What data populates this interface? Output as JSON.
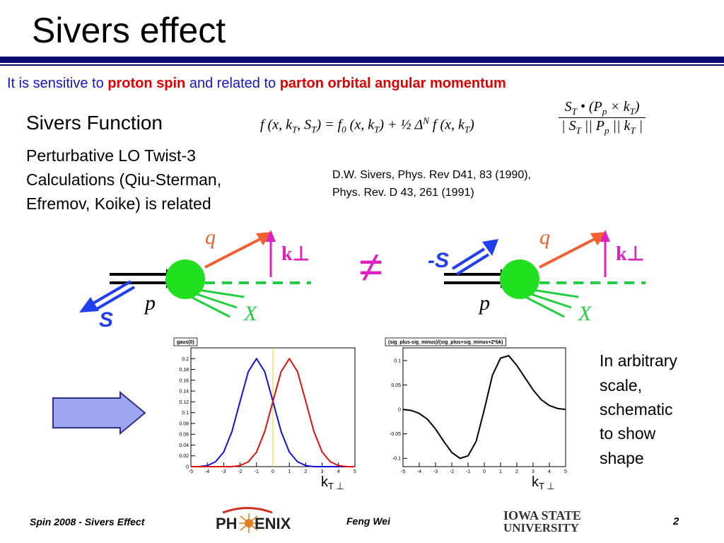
{
  "header": {
    "title": "Sivers effect"
  },
  "subtitle": [
    "It is sensitive to ",
    "proton spin",
    " and related to ",
    "parton orbital angular momentum"
  ],
  "section": {
    "heading": "Sivers Function",
    "lines": [
      "Perturbative LO Twist-3",
      "Calculations (Qiu-Sterman,",
      "Efremov, Koike) is related"
    ]
  },
  "formula": {
    "left": [
      "f (x, k",
      {
        "sub": "T"
      },
      ", S",
      {
        "sub": "T"
      },
      ") = f",
      {
        "sub": "0"
      },
      " (x, k",
      {
        "sub": "T"
      },
      ") + ½ Δ",
      {
        "sup": "N"
      },
      " f (x, k",
      {
        "sub": "T"
      },
      ")"
    ],
    "numerator": [
      "S",
      {
        "sub": "T"
      },
      " • (P",
      {
        "sub": "p"
      },
      " × k",
      {
        "sub": "T"
      },
      ")"
    ],
    "denominator": [
      "| S",
      {
        "sub": "T"
      },
      " || P",
      {
        "sub": "p"
      },
      " || k",
      {
        "sub": "T"
      },
      " |"
    ]
  },
  "references": [
    "D.W. Sivers, Phys. Rev D41, 83 (1990),",
    "Phys. Rev. D 43, 261 (1991)"
  ],
  "diagram": {
    "q": "q",
    "k": "k⊥",
    "p": "p",
    "S": "S",
    "X": "X",
    "minus_S": "-S",
    "not_equal": "≠"
  },
  "plots": [
    {
      "title": "gaus(0)",
      "xlim": [
        -5,
        5
      ],
      "ylim": [
        0,
        0.22
      ],
      "xticks": [
        -5,
        -4,
        -3,
        -2,
        -1,
        0,
        1,
        2,
        3,
        4,
        5
      ],
      "yticks": [
        0,
        0.02,
        0.04,
        0.06,
        0.08,
        0.1,
        0.12,
        0.14,
        0.16,
        0.18,
        0.2
      ],
      "marker_x": 0,
      "x": [
        -5,
        -4.5,
        -4,
        -3.5,
        -3,
        -2.5,
        -2,
        -1.5,
        -1,
        -0.5,
        0,
        0.5,
        1,
        1.5,
        2,
        2.5,
        3,
        3.5,
        4,
        4.5,
        5
      ],
      "series": [
        {
          "color": "#1010e0",
          "values": [
            0,
            0,
            0.002,
            0.009,
            0.027,
            0.065,
            0.121,
            0.176,
            0.2,
            0.176,
            0.121,
            0.065,
            0.027,
            0.009,
            0.002,
            0,
            0,
            0,
            0,
            0,
            0
          ]
        },
        {
          "color": "#e01010",
          "values": [
            0,
            0,
            0,
            0,
            0,
            0,
            0.002,
            0.009,
            0.027,
            0.065,
            0.121,
            0.176,
            0.2,
            0.176,
            0.121,
            0.065,
            0.027,
            0.009,
            0.002,
            0,
            0
          ]
        }
      ],
      "xlabel": {
        "base": "k",
        "sub": "T ⊥"
      }
    },
    {
      "title": "(sig_plus-sig_minus)/(sig_plus+sig_minus+2*bk)",
      "xlim": [
        -5,
        5
      ],
      "ylim": [
        -0.117,
        0.126
      ],
      "xticks": [
        -5,
        -4,
        -3,
        -2,
        -1,
        0,
        1,
        2,
        3,
        4,
        5
      ],
      "yticks": [
        -0.1,
        -0.05,
        0,
        0.05,
        0.1
      ],
      "x": [
        -5,
        -4.5,
        -4,
        -3.5,
        -3,
        -2.5,
        -2,
        -1.5,
        -1,
        -0.5,
        0,
        0.5,
        1,
        1.5,
        2,
        2.5,
        3,
        3.5,
        4,
        4.5,
        5
      ],
      "series": [
        {
          "color": "#000000",
          "values": [
            0,
            -0.002,
            -0.008,
            -0.02,
            -0.04,
            -0.065,
            -0.088,
            -0.1,
            -0.095,
            -0.065,
            0,
            0.07,
            0.105,
            0.11,
            0.09,
            0.065,
            0.04,
            0.02,
            0.008,
            0.002,
            0
          ]
        }
      ],
      "xlabel": {
        "base": "k",
        "sub": "T ⊥"
      }
    }
  ],
  "side_note": [
    "In arbitrary",
    "scale,",
    "schematic",
    "to show",
    "shape"
  ],
  "footer": {
    "left": "Spin 2008 - Sivers Effect",
    "logo_left": "PH",
    "logo_right": "ENIX",
    "author": "Feng Wei",
    "page": "2",
    "univ1": "IOWA STATE",
    "univ2": "UNIVERSITY"
  }
}
